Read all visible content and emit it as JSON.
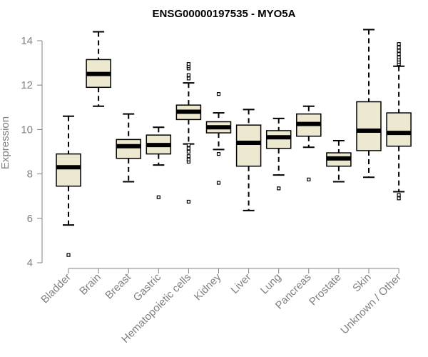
{
  "chart_data": {
    "type": "boxplot",
    "title": "ENSG00000197535 - MYO5A",
    "xlabel": "",
    "ylabel": "Expression",
    "ylim": [
      4,
      14.5
    ],
    "yticks": [
      4,
      6,
      8,
      10,
      12,
      14
    ],
    "colors": {
      "box_fill": "#ede8d0",
      "stroke": "#000000",
      "axis": "#808080"
    },
    "categories": [
      "Bladder",
      "Brain",
      "Breast",
      "Gastric",
      "Hematopoietic cells",
      "Kidney",
      "Liver",
      "Lung",
      "Pancreas",
      "Prostate",
      "Skin",
      "Unknown / Other"
    ],
    "boxes": [
      {
        "category": "Bladder",
        "whisker_low": 5.7,
        "q1": 7.45,
        "median": 8.3,
        "q3": 8.9,
        "whisker_high": 10.6,
        "outliers": [
          4.35
        ]
      },
      {
        "category": "Brain",
        "whisker_low": 11.05,
        "q1": 11.9,
        "median": 12.5,
        "q3": 13.15,
        "whisker_high": 14.4,
        "outliers": []
      },
      {
        "category": "Breast",
        "whisker_low": 7.65,
        "q1": 8.7,
        "median": 9.25,
        "q3": 9.55,
        "whisker_high": 10.7,
        "outliers": []
      },
      {
        "category": "Gastric",
        "whisker_low": 8.4,
        "q1": 8.9,
        "median": 9.3,
        "q3": 9.75,
        "whisker_high": 10.1,
        "outliers": [
          6.95
        ]
      },
      {
        "category": "Hematopoietic cells",
        "whisker_low": 9.35,
        "q1": 10.45,
        "median": 10.8,
        "q3": 11.1,
        "whisker_high": 12.1,
        "outliers": [
          6.75,
          8.55,
          8.65,
          8.8,
          9.0,
          9.15,
          9.3,
          12.3,
          12.45,
          12.75,
          12.85,
          12.95
        ]
      },
      {
        "category": "Kidney",
        "whisker_low": 9.1,
        "q1": 9.85,
        "median": 10.1,
        "q3": 10.35,
        "whisker_high": 10.75,
        "outliers": [
          7.6,
          8.9,
          11.6
        ]
      },
      {
        "category": "Liver",
        "whisker_low": 6.35,
        "q1": 8.35,
        "median": 9.4,
        "q3": 10.2,
        "whisker_high": 10.9,
        "outliers": []
      },
      {
        "category": "Lung",
        "whisker_low": 7.95,
        "q1": 9.15,
        "median": 9.65,
        "q3": 9.95,
        "whisker_high": 10.5,
        "outliers": [
          7.35
        ]
      },
      {
        "category": "Pancreas",
        "whisker_low": 9.2,
        "q1": 9.7,
        "median": 10.25,
        "q3": 10.7,
        "whisker_high": 11.05,
        "outliers": [
          7.75
        ]
      },
      {
        "category": "Prostate",
        "whisker_low": 7.65,
        "q1": 8.35,
        "median": 8.7,
        "q3": 8.95,
        "whisker_high": 9.5,
        "outliers": []
      },
      {
        "category": "Skin",
        "whisker_low": 7.85,
        "q1": 9.05,
        "median": 9.95,
        "q3": 11.25,
        "whisker_high": 14.5,
        "outliers": []
      },
      {
        "category": "Unknown / Other",
        "whisker_low": 7.2,
        "q1": 9.25,
        "median": 9.85,
        "q3": 10.75,
        "whisker_high": 12.85,
        "outliers": [
          6.9,
          7.05,
          12.95,
          13.05,
          13.15,
          13.25,
          13.4,
          13.55,
          13.7,
          13.85
        ]
      }
    ]
  }
}
